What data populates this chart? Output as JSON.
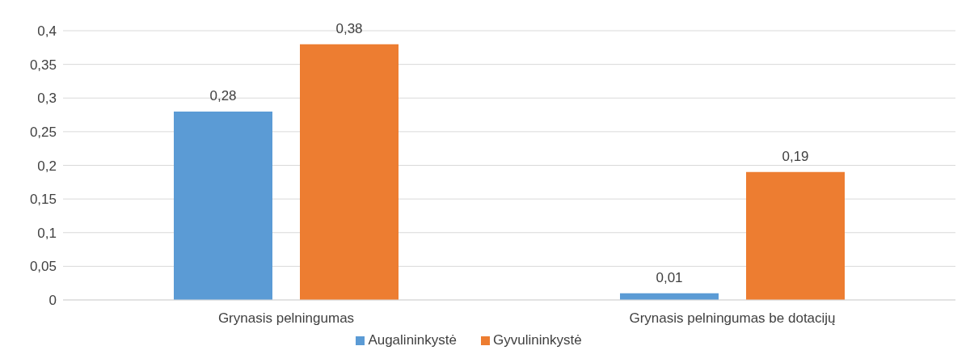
{
  "chart_data": {
    "type": "bar",
    "categories": [
      "Grynasis pelningumas",
      "Grynasis pelningumas be dotacijų"
    ],
    "series": [
      {
        "name": "Augalininkystė",
        "color": "#5b9bd5",
        "values": [
          0.28,
          0.01
        ],
        "value_labels": [
          "0,28",
          "0,01"
        ]
      },
      {
        "name": "Gyvulininkystė",
        "color": "#ed7d31",
        "values": [
          0.38,
          0.19
        ],
        "value_labels": [
          "0,38",
          "0,19"
        ]
      }
    ],
    "ylim": [
      0,
      0.4
    ],
    "yticks": [
      {
        "value": 0,
        "label": "0"
      },
      {
        "value": 0.05,
        "label": "0,05"
      },
      {
        "value": 0.1,
        "label": "0,1"
      },
      {
        "value": 0.15,
        "label": "0,15"
      },
      {
        "value": 0.2,
        "label": "0,2"
      },
      {
        "value": 0.25,
        "label": "0,25"
      },
      {
        "value": 0.3,
        "label": "0,3"
      },
      {
        "value": 0.35,
        "label": "0,35"
      },
      {
        "value": 0.4,
        "label": "0,4"
      }
    ],
    "grid": "y",
    "legend": "bottom"
  }
}
